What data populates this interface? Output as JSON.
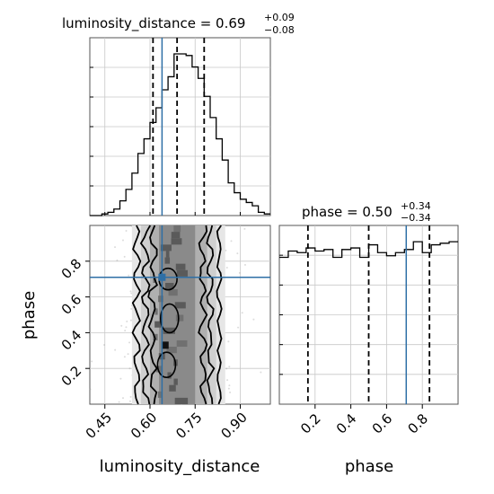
{
  "chart_data": {
    "type": "corner",
    "grid": true,
    "truth_color": "#2e6fa6",
    "parameters": [
      {
        "name": "luminosity_distance",
        "xlabel": "luminosity_distance",
        "title": {
          "prefix": "luminosity_distance = 0.69",
          "upper": "+0.09",
          "lower": "−0.08"
        },
        "range": [
          0.4,
          1.0
        ],
        "ticks": [
          0.45,
          0.6,
          0.75,
          0.9
        ],
        "tick_labels": [
          "0.45",
          "0.60",
          "0.75",
          "0.90"
        ],
        "quantiles": [
          0.61,
          0.69,
          0.78
        ],
        "truth": 0.64,
        "histogram": {
          "bin_edges": [
            0.4,
            0.42,
            0.44,
            0.46,
            0.48,
            0.5,
            0.52,
            0.54,
            0.56,
            0.58,
            0.6,
            0.62,
            0.64,
            0.66,
            0.68,
            0.7,
            0.72,
            0.74,
            0.76,
            0.78,
            0.8,
            0.82,
            0.84,
            0.86,
            0.88,
            0.9,
            0.92,
            0.94,
            0.96,
            0.98,
            1.0
          ],
          "counts": [
            0,
            0,
            1,
            2,
            4,
            9,
            16,
            26,
            38,
            47,
            57,
            66,
            77,
            85,
            99,
            99,
            98,
            91,
            84,
            73,
            60,
            47,
            34,
            20,
            14,
            10,
            8,
            6,
            2,
            1
          ]
        }
      },
      {
        "name": "phase",
        "xlabel": "phase",
        "ylabel": "phase",
        "title": {
          "prefix": "phase = 0.50",
          "upper": "+0.34",
          "lower": "−0.34"
        },
        "range": [
          0.0,
          1.0
        ],
        "ticks": [
          0.2,
          0.4,
          0.6,
          0.8
        ],
        "tick_labels": [
          "0.2",
          "0.4",
          "0.6",
          "0.8"
        ],
        "quantiles": [
          0.16,
          0.5,
          0.84
        ],
        "truth": 0.71,
        "histogram": {
          "bin_edges": [
            0.0,
            0.05,
            0.1,
            0.15,
            0.2,
            0.25,
            0.3,
            0.35,
            0.4,
            0.45,
            0.5,
            0.55,
            0.6,
            0.65,
            0.7,
            0.75,
            0.8,
            0.85,
            0.9,
            0.95,
            1.0
          ],
          "counts": [
            94,
            98,
            97,
            100,
            98,
            99,
            94,
            99,
            100,
            94,
            102,
            97,
            95,
            97,
            99,
            104,
            97,
            102,
            103,
            104
          ]
        }
      }
    ]
  }
}
